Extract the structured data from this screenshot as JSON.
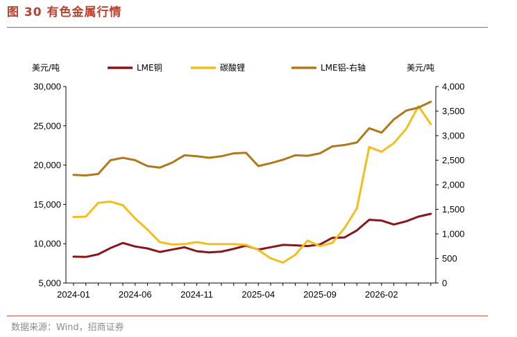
{
  "figure": {
    "title": "图 30 有色金属行情",
    "source": "数据来源：Wind，招商证券"
  },
  "chart_data": {
    "type": "line",
    "x_tick_labels": [
      "2024-01",
      "2024-06",
      "2024-11",
      "2025-04",
      "2025-09",
      "2026-02"
    ],
    "x": [
      "2024-01",
      "2024-02",
      "2024-03",
      "2024-04",
      "2024-05",
      "2024-06",
      "2024-07",
      "2024-08",
      "2024-09",
      "2024-10",
      "2024-11",
      "2024-12",
      "2025-01",
      "2025-02",
      "2025-03",
      "2025-04",
      "2025-05",
      "2025-06",
      "2025-07",
      "2025-08",
      "2025-09",
      "2025-10",
      "2025-11",
      "2025-12",
      "2026-01",
      "2026-02",
      "2026-03",
      "2026-04",
      "2026-05",
      "2026-06"
    ],
    "left_axis": {
      "unit": "美元/吨",
      "ylim": [
        5000,
        30000
      ],
      "ticks": [
        5000,
        10000,
        15000,
        20000,
        25000,
        30000
      ],
      "tick_labels": [
        "5,000",
        "10,000",
        "15,000",
        "20,000",
        "25,000",
        "30,000"
      ]
    },
    "right_axis": {
      "unit": "美元/吨",
      "ylim": [
        0,
        4000
      ],
      "ticks": [
        0,
        500,
        1000,
        1500,
        2000,
        2500,
        3000,
        3500,
        4000
      ],
      "tick_labels": [
        "0",
        "500",
        "1,000",
        "1,500",
        "2,000",
        "2,500",
        "3,000",
        "3,500",
        "4,000"
      ]
    },
    "legend_position": "top",
    "series": [
      {
        "name": "LME铜",
        "axis": "left",
        "color": "#8b1418",
        "values": [
          8350,
          8320,
          8650,
          9450,
          10100,
          9650,
          9400,
          8950,
          9250,
          9550,
          9050,
          8900,
          9000,
          9350,
          9750,
          9250,
          9550,
          9850,
          9800,
          9700,
          9900,
          10750,
          10800,
          11700,
          13050,
          12950,
          12450,
          12850,
          13450,
          13800
        ]
      },
      {
        "name": "碳酸锂",
        "axis": "left",
        "color": "#f4bd19",
        "values": [
          13400,
          13450,
          15200,
          15350,
          14900,
          13200,
          11800,
          10200,
          9900,
          9950,
          10200,
          9950,
          9950,
          9950,
          9850,
          9200,
          8150,
          7600,
          8600,
          10400,
          9700,
          10100,
          12000,
          14500,
          22300,
          21700,
          22800,
          24600,
          27500,
          25200
        ]
      },
      {
        "name": "LME铝-右轴",
        "axis": "right",
        "color": "#b07818",
        "values": [
          2200,
          2190,
          2220,
          2500,
          2550,
          2500,
          2380,
          2350,
          2450,
          2600,
          2580,
          2550,
          2580,
          2640,
          2650,
          2380,
          2440,
          2510,
          2600,
          2590,
          2640,
          2780,
          2810,
          2860,
          3150,
          3060,
          3330,
          3510,
          3570,
          3690
        ]
      }
    ]
  }
}
